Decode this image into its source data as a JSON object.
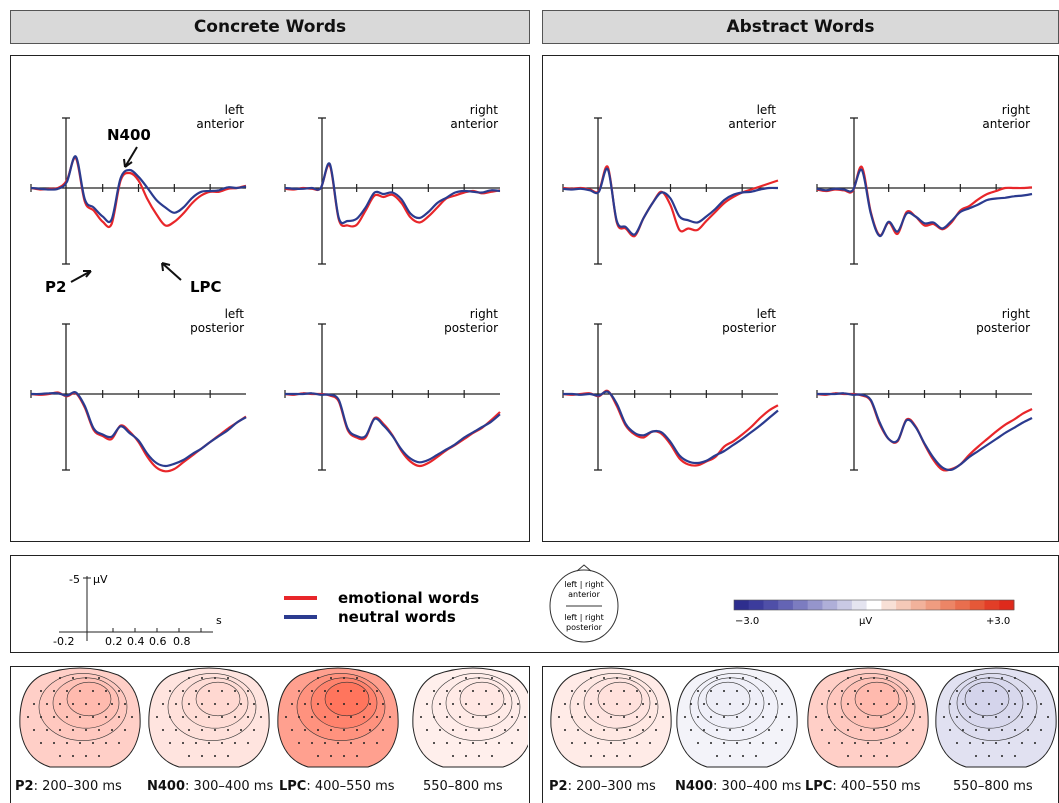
{
  "headers": {
    "concrete": "Concrete Words",
    "abstract": "Abstract Words"
  },
  "region_labels": {
    "left_anterior": [
      "left",
      "anterior"
    ],
    "right_anterior": [
      "right",
      "anterior"
    ],
    "left_posterior": [
      "left",
      "posterior"
    ],
    "right_posterior": [
      "right",
      "posterior"
    ]
  },
  "annotations": {
    "n400": "N400",
    "p2": "P2",
    "lpc": "LPC"
  },
  "scale": {
    "y_label": "-5",
    "y_unit": "μV",
    "x_unit": "s",
    "x_ticks": [
      "-0.2",
      "0.2",
      "0.4",
      "0.6",
      "0.8"
    ]
  },
  "legend": {
    "items": [
      {
        "label": "emotional words",
        "color": "#e8262a"
      },
      {
        "label": "neutral words",
        "color": "#2b3b8f"
      }
    ]
  },
  "head_key": {
    "top_line": "left | right",
    "top_sub": "anterior",
    "bottom_line": "left | right",
    "bottom_sub": "posterior"
  },
  "colorbar": {
    "min_label": "−3.0",
    "unit": "μV",
    "max_label": "+3.0",
    "colors": [
      "#2e2e8e",
      "#3c3c9c",
      "#4f4fa8",
      "#6464b4",
      "#7c7cc0",
      "#9595cc",
      "#afafd8",
      "#c9c9e4",
      "#e4e4f0",
      "#ffffff",
      "#f8e0d6",
      "#f5c9b8",
      "#f2b29b",
      "#ef9c80",
      "#ec8566",
      "#e96e4e",
      "#e55838",
      "#e23e27",
      "#de2a1c"
    ]
  },
  "topomaps": {
    "concrete": [
      {
        "name": "P2",
        "window": ": 200–300 ms",
        "level": 0.35
      },
      {
        "name": "N400",
        "window": ": 300–400 ms",
        "level": 0.2
      },
      {
        "name": "LPC",
        "window": ": 400–550 ms",
        "level": 0.7
      },
      {
        "name": "",
        "window": "550–800 ms",
        "level": 0.12
      }
    ],
    "abstract": [
      {
        "name": "P2",
        "window": ": 200–300 ms",
        "level": 0.15
      },
      {
        "name": "N400",
        "window": ": 300–400 ms",
        "level": -0.1
      },
      {
        "name": "LPC",
        "window": ": 400–550 ms",
        "level": 0.35
      },
      {
        "name": "",
        "window": "550–800 ms",
        "level": -0.25
      }
    ]
  },
  "chart_data": {
    "type": "line",
    "x_unit": "s",
    "y_unit": "μV",
    "y_axis_inverted": true,
    "x": [
      -0.2,
      -0.15,
      -0.1,
      -0.05,
      0,
      0.05,
      0.1,
      0.15,
      0.2,
      0.25,
      0.3,
      0.35,
      0.4,
      0.45,
      0.5,
      0.55,
      0.6,
      0.65,
      0.7,
      0.75,
      0.8,
      0.85,
      0.9,
      0.95,
      1.0
    ],
    "panels": [
      {
        "condition": "Concrete Words",
        "region": "left anterior",
        "series": [
          {
            "name": "emotional words",
            "values": [
              0,
              0.2,
              0.1,
              0,
              -1,
              -4,
              1.8,
              3,
              4.5,
              4.8,
              -1,
              -2,
              -1,
              1.5,
              3.5,
              5,
              4.5,
              3.4,
              2,
              1,
              0.5,
              0.5,
              0.1,
              0,
              -0.3
            ]
          },
          {
            "name": "neutral words",
            "values": [
              0,
              0.1,
              0.2,
              0.1,
              -0.8,
              -4.2,
              1.5,
              2.6,
              3.8,
              4.2,
              -1.3,
              -2.4,
              -1.5,
              0,
              1.6,
              2.6,
              3.3,
              2.6,
              1.3,
              0.5,
              0.4,
              0.3,
              -0.1,
              0,
              -0.2
            ]
          }
        ]
      },
      {
        "condition": "Concrete Words",
        "region": "right anterior",
        "series": [
          {
            "name": "emotional words",
            "values": [
              0.1,
              0.2,
              0,
              0.1,
              0,
              -3,
              4.2,
              5,
              4.9,
              3,
              1,
              1.2,
              0.9,
              2,
              3.9,
              4.6,
              3.8,
              2.6,
              1.4,
              1,
              0.6,
              0.4,
              0.7,
              0.5,
              0.3
            ]
          },
          {
            "name": "neutral words",
            "values": [
              0,
              0.1,
              0.1,
              0,
              0,
              -3.2,
              4,
              4.4,
              4.1,
              2.6,
              0.6,
              0.8,
              0.6,
              1.5,
              3.4,
              4,
              3.2,
              2,
              1.3,
              0.6,
              0.4,
              0.5,
              0.6,
              0.3,
              0.4
            ]
          }
        ]
      },
      {
        "condition": "Concrete Words",
        "region": "left posterior",
        "series": [
          {
            "name": "emotional words",
            "values": [
              0,
              0.1,
              0,
              -0.2,
              0.3,
              -0.1,
              1.8,
              4.8,
              5.6,
              6,
              4.2,
              5,
              6.4,
              8.4,
              9.8,
              10.3,
              10,
              9.1,
              8.2,
              7.3,
              6.4,
              5.5,
              4.6,
              3.8,
              3
            ]
          },
          {
            "name": "neutral words",
            "values": [
              0,
              0,
              -0.1,
              -0.1,
              0.2,
              -0.2,
              1.6,
              4.6,
              5.4,
              5.7,
              4.3,
              5.2,
              6.2,
              8,
              9.2,
              9.6,
              9.3,
              8.8,
              8,
              7.3,
              6.4,
              5.6,
              4.8,
              3.8,
              3.1
            ]
          }
        ]
      },
      {
        "condition": "Concrete Words",
        "region": "right posterior",
        "series": [
          {
            "name": "emotional words",
            "values": [
              0,
              0.1,
              -0.1,
              0,
              0,
              0.2,
              1,
              4.8,
              5.8,
              5.8,
              3.2,
              4,
              5.5,
              7.6,
              9,
              9.6,
              9.2,
              8.4,
              7.5,
              6.8,
              6,
              5.2,
              4.5,
              3.5,
              2.4
            ]
          },
          {
            "name": "neutral words",
            "values": [
              0,
              0,
              0,
              -0.1,
              0.1,
              0.1,
              0.8,
              4.6,
              5.6,
              5.6,
              3.3,
              4.2,
              5.6,
              7.4,
              8.6,
              9.1,
              8.8,
              8.1,
              7.4,
              6.7,
              5.8,
              5.1,
              4.4,
              3.7,
              2.7
            ]
          }
        ]
      },
      {
        "condition": "Abstract Words",
        "region": "left anterior",
        "series": [
          {
            "name": "emotional words",
            "values": [
              0,
              0.1,
              0,
              0.2,
              0.4,
              -2.8,
              4.6,
              5.4,
              6.4,
              4,
              2,
              0.5,
              2.3,
              5.6,
              5.4,
              5.6,
              4.4,
              3.2,
              2,
              1.2,
              0.6,
              0.2,
              -0.2,
              -0.6,
              -1
            ]
          },
          {
            "name": "neutral words",
            "values": [
              0.1,
              0.2,
              0.1,
              0.3,
              0.5,
              -2.5,
              4.4,
              5.2,
              6.2,
              4,
              2,
              0.6,
              1.4,
              3.8,
              4.3,
              4.6,
              3.8,
              2.8,
              1.6,
              0.9,
              0.6,
              0.5,
              0.2,
              0,
              0
            ]
          }
        ]
      },
      {
        "condition": "Abstract Words",
        "region": "right anterior",
        "series": [
          {
            "name": "emotional words",
            "values": [
              0.2,
              0.4,
              0.2,
              0.3,
              0.4,
              -2.8,
              3.2,
              6.3,
              4.6,
              6.1,
              3.2,
              3.8,
              5,
              4.8,
              5.5,
              4.6,
              3,
              2.4,
              1.5,
              0.8,
              0.4,
              0,
              0,
              0,
              -0.1
            ]
          },
          {
            "name": "neutral words",
            "values": [
              0.1,
              0.3,
              0.1,
              0.2,
              0.3,
              -2.4,
              3.4,
              6.4,
              4.5,
              5.8,
              3.4,
              3.8,
              4.7,
              4.6,
              5.4,
              4.4,
              3.2,
              2.7,
              2.2,
              1.6,
              1.4,
              1.3,
              1.1,
              1,
              0.8
            ]
          }
        ]
      },
      {
        "condition": "Abstract Words",
        "region": "left posterior",
        "series": [
          {
            "name": "emotional words",
            "values": [
              0,
              0.1,
              0,
              -0.1,
              0.3,
              -0.4,
              1.6,
              4.2,
              5.4,
              5.8,
              5,
              5.3,
              6.7,
              8.6,
              9.4,
              9.5,
              9,
              8.4,
              7,
              6.3,
              5.4,
              4.4,
              3.2,
              2.2,
              1.5
            ]
          },
          {
            "name": "neutral words",
            "values": [
              0,
              0,
              0.1,
              0,
              0.2,
              -0.3,
              1.3,
              4,
              5.2,
              5.5,
              5,
              5.1,
              6.4,
              8.2,
              9,
              9.2,
              8.9,
              8.2,
              7.6,
              6.8,
              6,
              5.1,
              4.2,
              3.2,
              2.2
            ]
          }
        ]
      },
      {
        "condition": "Abstract Words",
        "region": "right posterior",
        "series": [
          {
            "name": "emotional words",
            "values": [
              0,
              0.1,
              -0.1,
              0,
              0,
              0.2,
              0.9,
              4,
              6,
              6.3,
              3.4,
              4.3,
              6.7,
              8.8,
              10.1,
              10,
              9.4,
              8.1,
              7,
              6,
              5,
              4.1,
              3.4,
              2.6,
              2
            ]
          },
          {
            "name": "neutral words",
            "values": [
              0,
              0,
              0,
              -0.1,
              0.1,
              0.1,
              0.8,
              3.8,
              6,
              6.2,
              3.5,
              4.4,
              6.6,
              8.5,
              9.8,
              10.1,
              9.4,
              8.4,
              7.6,
              6.8,
              6,
              5.2,
              4.5,
              3.8,
              3.2
            ]
          }
        ]
      }
    ]
  }
}
